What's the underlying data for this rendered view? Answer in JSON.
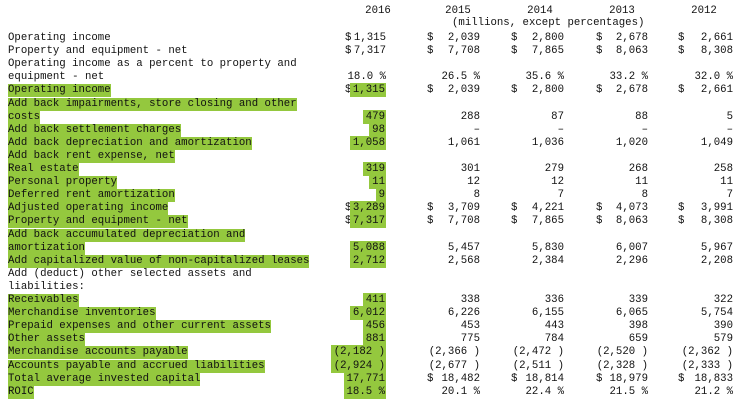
{
  "table": {
    "columns": [
      "2016",
      "2015",
      "2014",
      "2013",
      "2012"
    ],
    "subheader": "(millions, except percentages)",
    "rows": [
      {
        "label": "Operating income",
        "cells": [
          {
            "prefix": "$",
            "text": "1,315"
          },
          {
            "prefix": "$",
            "text": "2,039"
          },
          {
            "prefix": "$",
            "text": "2,800"
          },
          {
            "prefix": "$",
            "text": "2,678"
          },
          {
            "prefix": "$",
            "text": "2,661"
          }
        ]
      },
      {
        "label": "Property and equipment - net",
        "cells": [
          {
            "prefix": "$",
            "text": "7,317"
          },
          {
            "prefix": "$",
            "text": "7,708"
          },
          {
            "prefix": "$",
            "text": "7,865"
          },
          {
            "prefix": "$",
            "text": "8,063"
          },
          {
            "prefix": "$",
            "text": "8,308"
          }
        ]
      },
      {
        "label": "Operating income as a percent to property and"
      },
      {
        "label": "equipment - net",
        "cells": [
          {
            "text": "18.0 %"
          },
          {
            "text": "26.5 %"
          },
          {
            "text": "35.6 %"
          },
          {
            "text": "33.2 %"
          },
          {
            "text": "32.0 %"
          }
        ]
      },
      {
        "label": "Operating income",
        "highlight": true,
        "cells": [
          {
            "prefix": "$",
            "text": "1,315"
          },
          {
            "prefix": "$",
            "text": "2,039"
          },
          {
            "prefix": "$",
            "text": "2,800"
          },
          {
            "prefix": "$",
            "text": "2,678"
          },
          {
            "prefix": "$",
            "text": "2,661"
          }
        ]
      },
      {
        "label": "Add back impairments, store closing and other",
        "highlight": true
      },
      {
        "label": "costs",
        "highlight": true,
        "cells": [
          {
            "text": "479"
          },
          {
            "text": "288"
          },
          {
            "text": "87"
          },
          {
            "text": "88"
          },
          {
            "text": "5"
          }
        ]
      },
      {
        "label": "Add back settlement charges",
        "highlight": true,
        "cells": [
          {
            "text": "98"
          },
          {
            "text": "–"
          },
          {
            "text": "–"
          },
          {
            "text": "–"
          },
          {
            "text": "–"
          }
        ]
      },
      {
        "label": "Add back depreciation and amortization",
        "highlight": true,
        "cells": [
          {
            "text": "1,058"
          },
          {
            "text": "1,061"
          },
          {
            "text": "1,036"
          },
          {
            "text": "1,020"
          },
          {
            "text": "1,049"
          }
        ]
      },
      {
        "label": "Add back rent expense, net",
        "highlight": true
      },
      {
        "label": "Real estate",
        "highlight": true,
        "cells": [
          {
            "text": "319"
          },
          {
            "text": "301"
          },
          {
            "text": "279"
          },
          {
            "text": "268"
          },
          {
            "text": "258"
          }
        ]
      },
      {
        "label": "Personal property",
        "highlight": true,
        "cells": [
          {
            "text": "11"
          },
          {
            "text": "12"
          },
          {
            "text": "12"
          },
          {
            "text": "11"
          },
          {
            "text": "11"
          }
        ]
      },
      {
        "label": "Deferred rent amortization",
        "highlight": true,
        "cells": [
          {
            "text": "9"
          },
          {
            "text": "8"
          },
          {
            "text": "7"
          },
          {
            "text": "8"
          },
          {
            "text": "7"
          }
        ]
      },
      {
        "label": "Adjusted operating income",
        "highlight": true,
        "cells": [
          {
            "prefix": "$",
            "text": "3,289"
          },
          {
            "prefix": "$",
            "text": "3,709"
          },
          {
            "prefix": "$",
            "text": "4,221"
          },
          {
            "prefix": "$",
            "text": "4,073"
          },
          {
            "prefix": "$",
            "text": "3,991"
          }
        ]
      },
      {
        "label": "Property and equipment - net",
        "highlight": true,
        "cells": [
          {
            "prefix": "$",
            "text": "7,317"
          },
          {
            "prefix": "$",
            "text": "7,708"
          },
          {
            "prefix": "$",
            "text": "7,865"
          },
          {
            "prefix": "$",
            "text": "8,063"
          },
          {
            "prefix": "$",
            "text": "8,308"
          }
        ]
      },
      {
        "label": "Add back accumulated depreciation and",
        "highlight": true
      },
      {
        "label": "amortization",
        "highlight": true,
        "cells": [
          {
            "text": "5,088"
          },
          {
            "text": "5,457"
          },
          {
            "text": "5,830"
          },
          {
            "text": "6,007"
          },
          {
            "text": "5,967"
          }
        ]
      },
      {
        "label": "Add capitalized value of non-capitalized leases",
        "highlight": true,
        "cells": [
          {
            "text": "2,712"
          },
          {
            "text": "2,568"
          },
          {
            "text": "2,384"
          },
          {
            "text": "2,296"
          },
          {
            "text": "2,208"
          }
        ]
      },
      {
        "label": "Add (deduct) other selected assets and"
      },
      {
        "label": "liabilities:"
      },
      {
        "label": "Receivables",
        "highlight": true,
        "cells": [
          {
            "text": "411"
          },
          {
            "text": "338"
          },
          {
            "text": "336"
          },
          {
            "text": "339"
          },
          {
            "text": "322"
          }
        ]
      },
      {
        "label": "Merchandise inventories",
        "highlight": true,
        "cells": [
          {
            "text": "6,012"
          },
          {
            "text": "6,226"
          },
          {
            "text": "6,155"
          },
          {
            "text": "6,065"
          },
          {
            "text": "5,754"
          }
        ]
      },
      {
        "label": "Prepaid expenses and other current assets",
        "highlight": true,
        "cells": [
          {
            "text": "456"
          },
          {
            "text": "453"
          },
          {
            "text": "443"
          },
          {
            "text": "398"
          },
          {
            "text": "390"
          }
        ]
      },
      {
        "label": "Other assets",
        "highlight": true,
        "cells": [
          {
            "text": "881"
          },
          {
            "text": "775"
          },
          {
            "text": "784"
          },
          {
            "text": "659"
          },
          {
            "text": "579"
          }
        ]
      },
      {
        "label": "Merchandise accounts payable",
        "highlight": true,
        "cells": [
          {
            "text": "(2,182 )"
          },
          {
            "text": "(2,366 )"
          },
          {
            "text": "(2,472 )"
          },
          {
            "text": "(2,520 )"
          },
          {
            "text": "(2,362 )"
          }
        ]
      },
      {
        "label": "Accounts payable and accrued liabilities",
        "highlight": true,
        "cells": [
          {
            "text": "(2,924 )"
          },
          {
            "text": "(2,677 )"
          },
          {
            "text": "(2,511 )"
          },
          {
            "text": "(2,328 )"
          },
          {
            "text": "(2,333 )"
          }
        ]
      },
      {
        "label": "Total average invested capital",
        "highlight": true,
        "cells": [
          {
            "prefix": "$",
            "text": "17,771"
          },
          {
            "prefix": "$",
            "text": "18,482"
          },
          {
            "prefix": "$",
            "text": "18,814"
          },
          {
            "prefix": "$",
            "text": "18,979"
          },
          {
            "prefix": "$",
            "text": "18,833"
          }
        ]
      },
      {
        "label": "ROIC",
        "highlight": true,
        "cells": [
          {
            "text": "18.5 %"
          },
          {
            "text": "20.1 %"
          },
          {
            "text": "22.4 %"
          },
          {
            "text": "21.5 %"
          },
          {
            "text": "21.2 %"
          }
        ]
      }
    ]
  }
}
